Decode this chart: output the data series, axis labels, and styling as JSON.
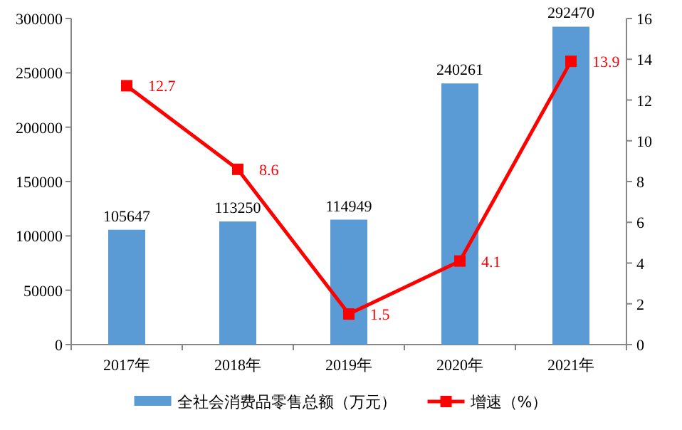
{
  "chart_data": {
    "type": "bar",
    "categories": [
      "2017年",
      "2018年",
      "2019年",
      "2020年",
      "2021年"
    ],
    "series": [
      {
        "name": "全社会消费品零售总额（万元）",
        "color": "#5b9bd5",
        "values": [
          105647,
          113250,
          114949,
          240261,
          292470
        ]
      },
      {
        "name": "增速（%）",
        "type": "line",
        "axis": "y2",
        "color": "#ff0000",
        "values": [
          12.7,
          8.6,
          1.5,
          4.1,
          13.9
        ]
      }
    ],
    "ylim": [
      0,
      300000
    ],
    "yticks": [
      0,
      50000,
      100000,
      150000,
      200000,
      250000,
      300000
    ],
    "y2lim": [
      0,
      16
    ],
    "y2ticks": [
      0,
      2,
      4,
      6,
      8,
      10,
      12,
      14,
      16
    ],
    "data_labels": true,
    "legend": "bottom",
    "grid": false,
    "marker": "square",
    "line_style": "solid"
  }
}
